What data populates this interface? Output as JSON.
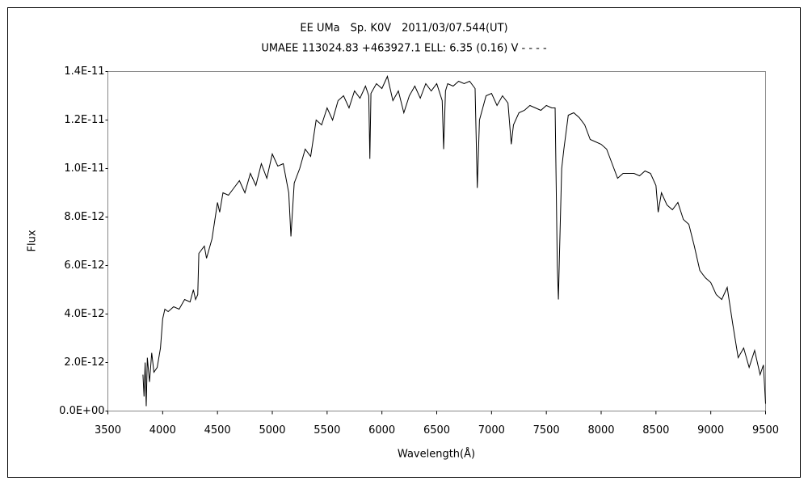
{
  "chart_data": {
    "type": "line",
    "title": "EE UMa　Sp. K0V　2011/03/07.544(UT)",
    "subtitle": "UMAEE 113024.83 +463927.1 ELL: 6.35 (0.16) V - - - -",
    "x_label": "Wavelength(Å)",
    "y_label": "Flux",
    "xlim": [
      3500,
      9500
    ],
    "xticks": [
      3500,
      4000,
      4500,
      5000,
      5500,
      6000,
      6500,
      7000,
      7500,
      8000,
      8500,
      9000,
      9500
    ],
    "ylim": [
      0,
      1.4e-11
    ],
    "yticks": [
      {
        "value": 0,
        "label": "0.0E+00"
      },
      {
        "value": 2e-12,
        "label": "2.0E-12"
      },
      {
        "value": 4e-12,
        "label": "4.0E-12"
      },
      {
        "value": 6e-12,
        "label": "6.0E-12"
      },
      {
        "value": 8e-12,
        "label": "8.0E-12"
      },
      {
        "value": 1e-11,
        "label": "1.0E-11"
      },
      {
        "value": 1.2e-11,
        "label": "1.2E-11"
      },
      {
        "value": 1.4e-11,
        "label": "1.4E-11"
      }
    ],
    "grid": false,
    "color": "#000000",
    "x": [
      3820,
      3830,
      3840,
      3850,
      3860,
      3880,
      3900,
      3920,
      3950,
      3980,
      4000,
      4020,
      4050,
      4100,
      4150,
      4200,
      4250,
      4280,
      4300,
      4320,
      4330,
      4380,
      4400,
      4450,
      4480,
      4500,
      4520,
      4550,
      4600,
      4650,
      4700,
      4750,
      4800,
      4850,
      4900,
      4950,
      5000,
      5050,
      5100,
      5150,
      5170,
      5200,
      5250,
      5300,
      5350,
      5400,
      5450,
      5500,
      5550,
      5600,
      5650,
      5700,
      5750,
      5800,
      5850,
      5880,
      5890,
      5900,
      5950,
      6000,
      6050,
      6100,
      6150,
      6200,
      6250,
      6300,
      6350,
      6400,
      6450,
      6500,
      6550,
      6563,
      6580,
      6600,
      6650,
      6700,
      6750,
      6800,
      6850,
      6870,
      6890,
      6920,
      6950,
      7000,
      7050,
      7100,
      7150,
      7180,
      7200,
      7250,
      7300,
      7350,
      7400,
      7450,
      7500,
      7550,
      7580,
      7600,
      7610,
      7620,
      7640,
      7660,
      7700,
      7750,
      7800,
      7850,
      7900,
      7950,
      8000,
      8050,
      8100,
      8150,
      8200,
      8250,
      8300,
      8350,
      8400,
      8450,
      8500,
      8520,
      8550,
      8600,
      8650,
      8700,
      8750,
      8800,
      8850,
      8900,
      8950,
      9000,
      9050,
      9100,
      9150,
      9200,
      9250,
      9300,
      9350,
      9400,
      9450,
      9480,
      9500
    ],
    "values": [
      1.5e-12,
      6e-13,
      2e-12,
      2e-13,
      2.2e-12,
      1.2e-12,
      2.4e-12,
      1.6e-12,
      1.8e-12,
      2.6e-12,
      3.8e-12,
      4.2e-12,
      4.1e-12,
      4.3e-12,
      4.2e-12,
      4.6e-12,
      4.5e-12,
      5e-12,
      4.6e-12,
      4.8e-12,
      6.5e-12,
      6.8e-12,
      6.3e-12,
      7.1e-12,
      8e-12,
      8.6e-12,
      8.2e-12,
      9e-12,
      8.9e-12,
      9.2e-12,
      9.5e-12,
      9e-12,
      9.8e-12,
      9.3e-12,
      1.02e-11,
      9.6e-12,
      1.06e-11,
      1.01e-11,
      1.02e-11,
      9e-12,
      7.2e-12,
      9.4e-12,
      1e-11,
      1.08e-11,
      1.05e-11,
      1.2e-11,
      1.18e-11,
      1.25e-11,
      1.2e-11,
      1.28e-11,
      1.3e-11,
      1.25e-11,
      1.32e-11,
      1.29e-11,
      1.34e-11,
      1.3e-11,
      1.04e-11,
      1.31e-11,
      1.35e-11,
      1.33e-11,
      1.38e-11,
      1.28e-11,
      1.32e-11,
      1.23e-11,
      1.3e-11,
      1.34e-11,
      1.29e-11,
      1.35e-11,
      1.32e-11,
      1.35e-11,
      1.28e-11,
      1.08e-11,
      1.32e-11,
      1.35e-11,
      1.34e-11,
      1.36e-11,
      1.35e-11,
      1.36e-11,
      1.33e-11,
      9.2e-12,
      1.2e-11,
      1.25e-11,
      1.3e-11,
      1.31e-11,
      1.26e-11,
      1.3e-11,
      1.27e-11,
      1.1e-11,
      1.18e-11,
      1.23e-11,
      1.24e-11,
      1.26e-11,
      1.25e-11,
      1.24e-11,
      1.26e-11,
      1.25e-11,
      1.25e-11,
      6e-12,
      4.6e-12,
      6.5e-12,
      1e-11,
      1.08e-11,
      1.22e-11,
      1.23e-11,
      1.21e-11,
      1.18e-11,
      1.12e-11,
      1.11e-11,
      1.1e-11,
      1.08e-11,
      1.02e-11,
      9.6e-12,
      9.8e-12,
      9.8e-12,
      9.8e-12,
      9.7e-12,
      9.9e-12,
      9.8e-12,
      9.3e-12,
      8.2e-12,
      9e-12,
      8.5e-12,
      8.3e-12,
      8.6e-12,
      7.9e-12,
      7.7e-12,
      6.8e-12,
      5.8e-12,
      5.5e-12,
      5.3e-12,
      4.8e-12,
      4.6e-12,
      5.1e-12,
      3.6e-12,
      2.2e-12,
      2.6e-12,
      1.8e-12,
      2.5e-12,
      1.5e-12,
      1.9e-12,
      3e-13
    ]
  }
}
